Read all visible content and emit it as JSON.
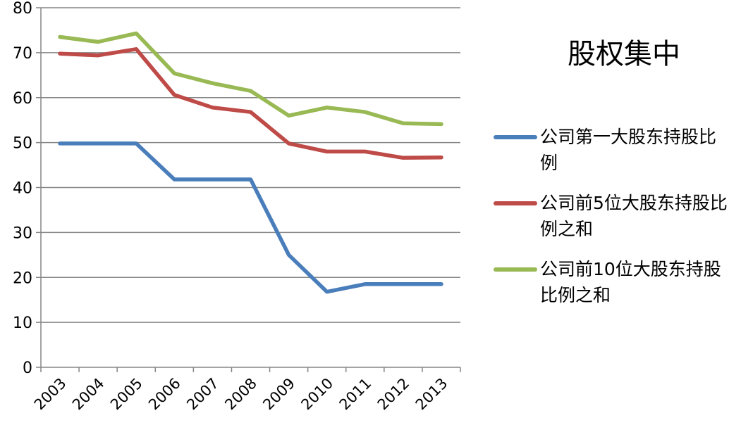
{
  "chart_data": {
    "type": "line",
    "title": "股权集中",
    "categories": [
      "2003",
      "2004",
      "2005",
      "2006",
      "2007",
      "2008",
      "2009",
      "2010",
      "2011",
      "2012",
      "2013"
    ],
    "ylim": [
      0,
      80
    ],
    "yticks": [
      "0",
      "10",
      "20",
      "30",
      "40",
      "50",
      "60",
      "70",
      "80"
    ],
    "grid": true,
    "legend_position": "right",
    "series": [
      {
        "name": "公司第一大股东持股比例",
        "color": "#4a7ebb",
        "values": [
          49.8,
          49.8,
          49.8,
          41.8,
          41.8,
          41.8,
          25,
          16.8,
          18.5,
          18.5,
          18.5
        ]
      },
      {
        "name": "公司前5位大股东持股比例之和",
        "color": "#be4b48",
        "values": [
          69.8,
          69.4,
          70.8,
          60.6,
          57.8,
          56.8,
          49.8,
          48,
          48,
          46.6,
          46.7
        ]
      },
      {
        "name": "公司前10位大股东持股比例之和",
        "color": "#98b954",
        "values": [
          73.5,
          72.4,
          74.3,
          65.4,
          63.2,
          61.5,
          56,
          57.8,
          56.8,
          54.3,
          54.1
        ]
      }
    ]
  }
}
